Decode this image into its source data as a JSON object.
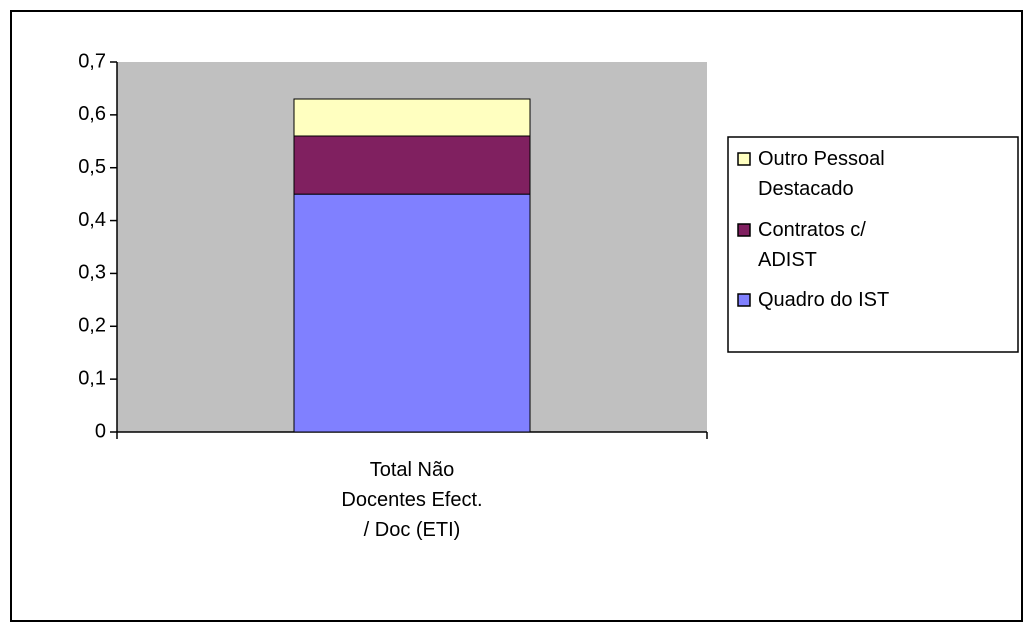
{
  "chart_data": {
    "type": "stacked_bar",
    "categories": [
      "Total Não Docentes Efect. / Doc (ETI)"
    ],
    "series": [
      {
        "name": "Quadro do IST",
        "color": "#8080ff",
        "values": [
          0.45
        ]
      },
      {
        "name": "Contratos c/ ADIST",
        "color": "#802060",
        "values": [
          0.11
        ]
      },
      {
        "name": "Outro Pessoal Destacado",
        "color": "#ffffc0",
        "values": [
          0.07
        ]
      }
    ],
    "ylim": [
      0,
      0.7
    ],
    "yticks": [
      0,
      {
        "value": 0.1,
        "label": "0,1"
      },
      {
        "value": 0.2,
        "label": "0,2"
      },
      {
        "value": 0.3,
        "label": "0,3"
      },
      {
        "value": 0.4,
        "label": "0,4"
      },
      {
        "value": 0.5,
        "label": "0,5"
      },
      {
        "value": 0.6,
        "label": "0,6"
      },
      {
        "value": 0.7,
        "label": "0,7"
      }
    ],
    "legend": "right",
    "plot_background": "#c0c0c0"
  }
}
